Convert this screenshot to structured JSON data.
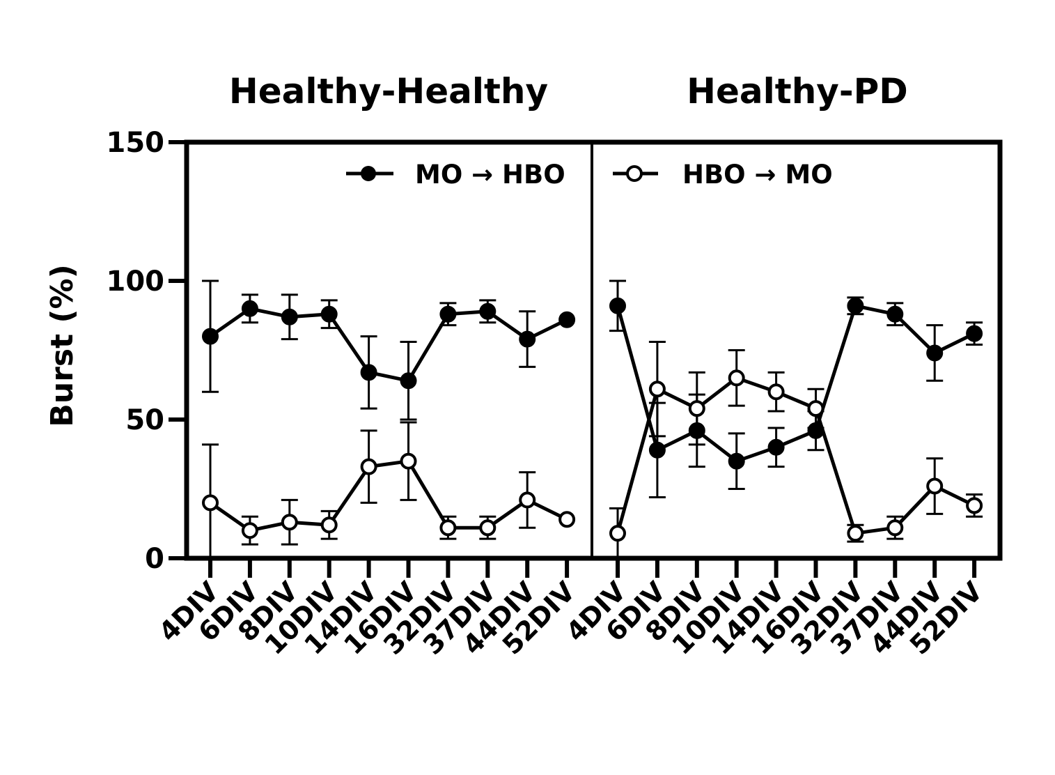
{
  "chart_data": {
    "type": "line",
    "ylabel": "Burst (%)",
    "ylim": [
      0,
      150
    ],
    "yticks": [
      0,
      50,
      100,
      150
    ],
    "categories": [
      "4DIV",
      "6DIV",
      "8DIV",
      "10DIV",
      "14DIV",
      "16DIV",
      "32DIV",
      "37DIV",
      "44DIV",
      "52DIV"
    ],
    "legend": [
      {
        "label": "MO → HBO",
        "marker": "filled-circle"
      },
      {
        "label": "HBO → MO",
        "marker": "open-circle"
      }
    ],
    "panels": [
      {
        "title": "Healthy-Healthy",
        "series": [
          {
            "name": "MO → HBO",
            "marker": "filled",
            "values": [
              80,
              90,
              87,
              88,
              67,
              64,
              88,
              89,
              79,
              86
            ],
            "errors": [
              20,
              5,
              8,
              5,
              13,
              14,
              4,
              4,
              10,
              0
            ]
          },
          {
            "name": "HBO → MO",
            "marker": "open",
            "values": [
              20,
              10,
              13,
              12,
              33,
              35,
              11,
              11,
              21,
              14
            ],
            "errors": [
              21,
              5,
              8,
              5,
              13,
              14,
              4,
              4,
              10,
              0
            ]
          }
        ]
      },
      {
        "title": "Healthy-PD",
        "series": [
          {
            "name": "MO → HBO",
            "marker": "filled",
            "values": [
              91,
              39,
              46,
              35,
              40,
              46,
              91,
              88,
              74,
              81
            ],
            "errors": [
              9,
              17,
              13,
              10,
              7,
              7,
              3,
              4,
              10,
              4
            ]
          },
          {
            "name": "HBO → MO",
            "marker": "open",
            "values": [
              9,
              61,
              54,
              65,
              60,
              54,
              9,
              11,
              26,
              19
            ],
            "errors": [
              9,
              17,
              13,
              10,
              7,
              7,
              3,
              4,
              10,
              4
            ]
          }
        ]
      }
    ]
  }
}
